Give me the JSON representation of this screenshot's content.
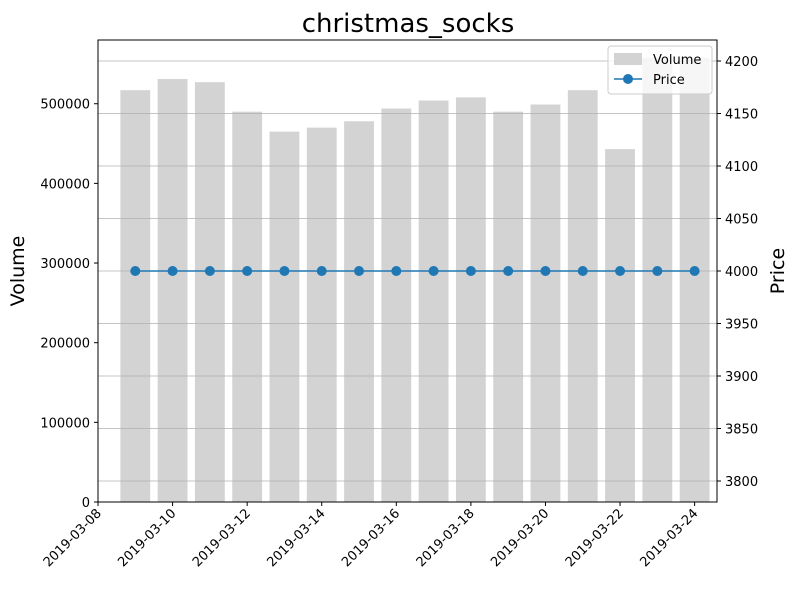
{
  "chart_data": {
    "type": "bar+line",
    "title": "christmas_socks",
    "x": [
      "2019-03-09",
      "2019-03-10",
      "2019-03-11",
      "2019-03-12",
      "2019-03-13",
      "2019-03-14",
      "2019-03-15",
      "2019-03-16",
      "2019-03-17",
      "2019-03-18",
      "2019-03-19",
      "2019-03-20",
      "2019-03-21",
      "2019-03-22",
      "2019-03-23",
      "2019-03-24"
    ],
    "x_ticks": [
      "2019-03-08",
      "2019-03-10",
      "2019-03-12",
      "2019-03-14",
      "2019-03-16",
      "2019-03-18",
      "2019-03-20",
      "2019-03-22",
      "2019-03-24"
    ],
    "xlim": [
      "2019-03-08",
      "2019-03-24.6"
    ],
    "series": [
      {
        "name": "Volume",
        "type": "bar",
        "axis": "left",
        "color": "#d3d3d3",
        "values": [
          517000,
          531000,
          527000,
          490000,
          465000,
          470000,
          478000,
          494000,
          504000,
          508000,
          490000,
          499000,
          517000,
          443000,
          558000,
          558000
        ]
      },
      {
        "name": "Price",
        "type": "line",
        "axis": "right",
        "color": "#1f77b4",
        "marker": "circle",
        "values": [
          4000,
          4000,
          4000,
          4000,
          4000,
          4000,
          4000,
          4000,
          4000,
          4000,
          4000,
          4000,
          4000,
          4000,
          4000,
          4000
        ]
      }
    ],
    "ylabel_left": "Volume",
    "ylim_left": [
      0,
      580000
    ],
    "yticks_left": [
      "0",
      "100000",
      "200000",
      "300000",
      "400000",
      "500000"
    ],
    "ylabel_right": "Price",
    "ylim_right": [
      3780,
      4220
    ],
    "yticks_right": [
      "3800",
      "3850",
      "3900",
      "3950",
      "4000",
      "4050",
      "4100",
      "4150",
      "4200"
    ],
    "grid": "horizontal on right axis",
    "legend": "top-right"
  }
}
